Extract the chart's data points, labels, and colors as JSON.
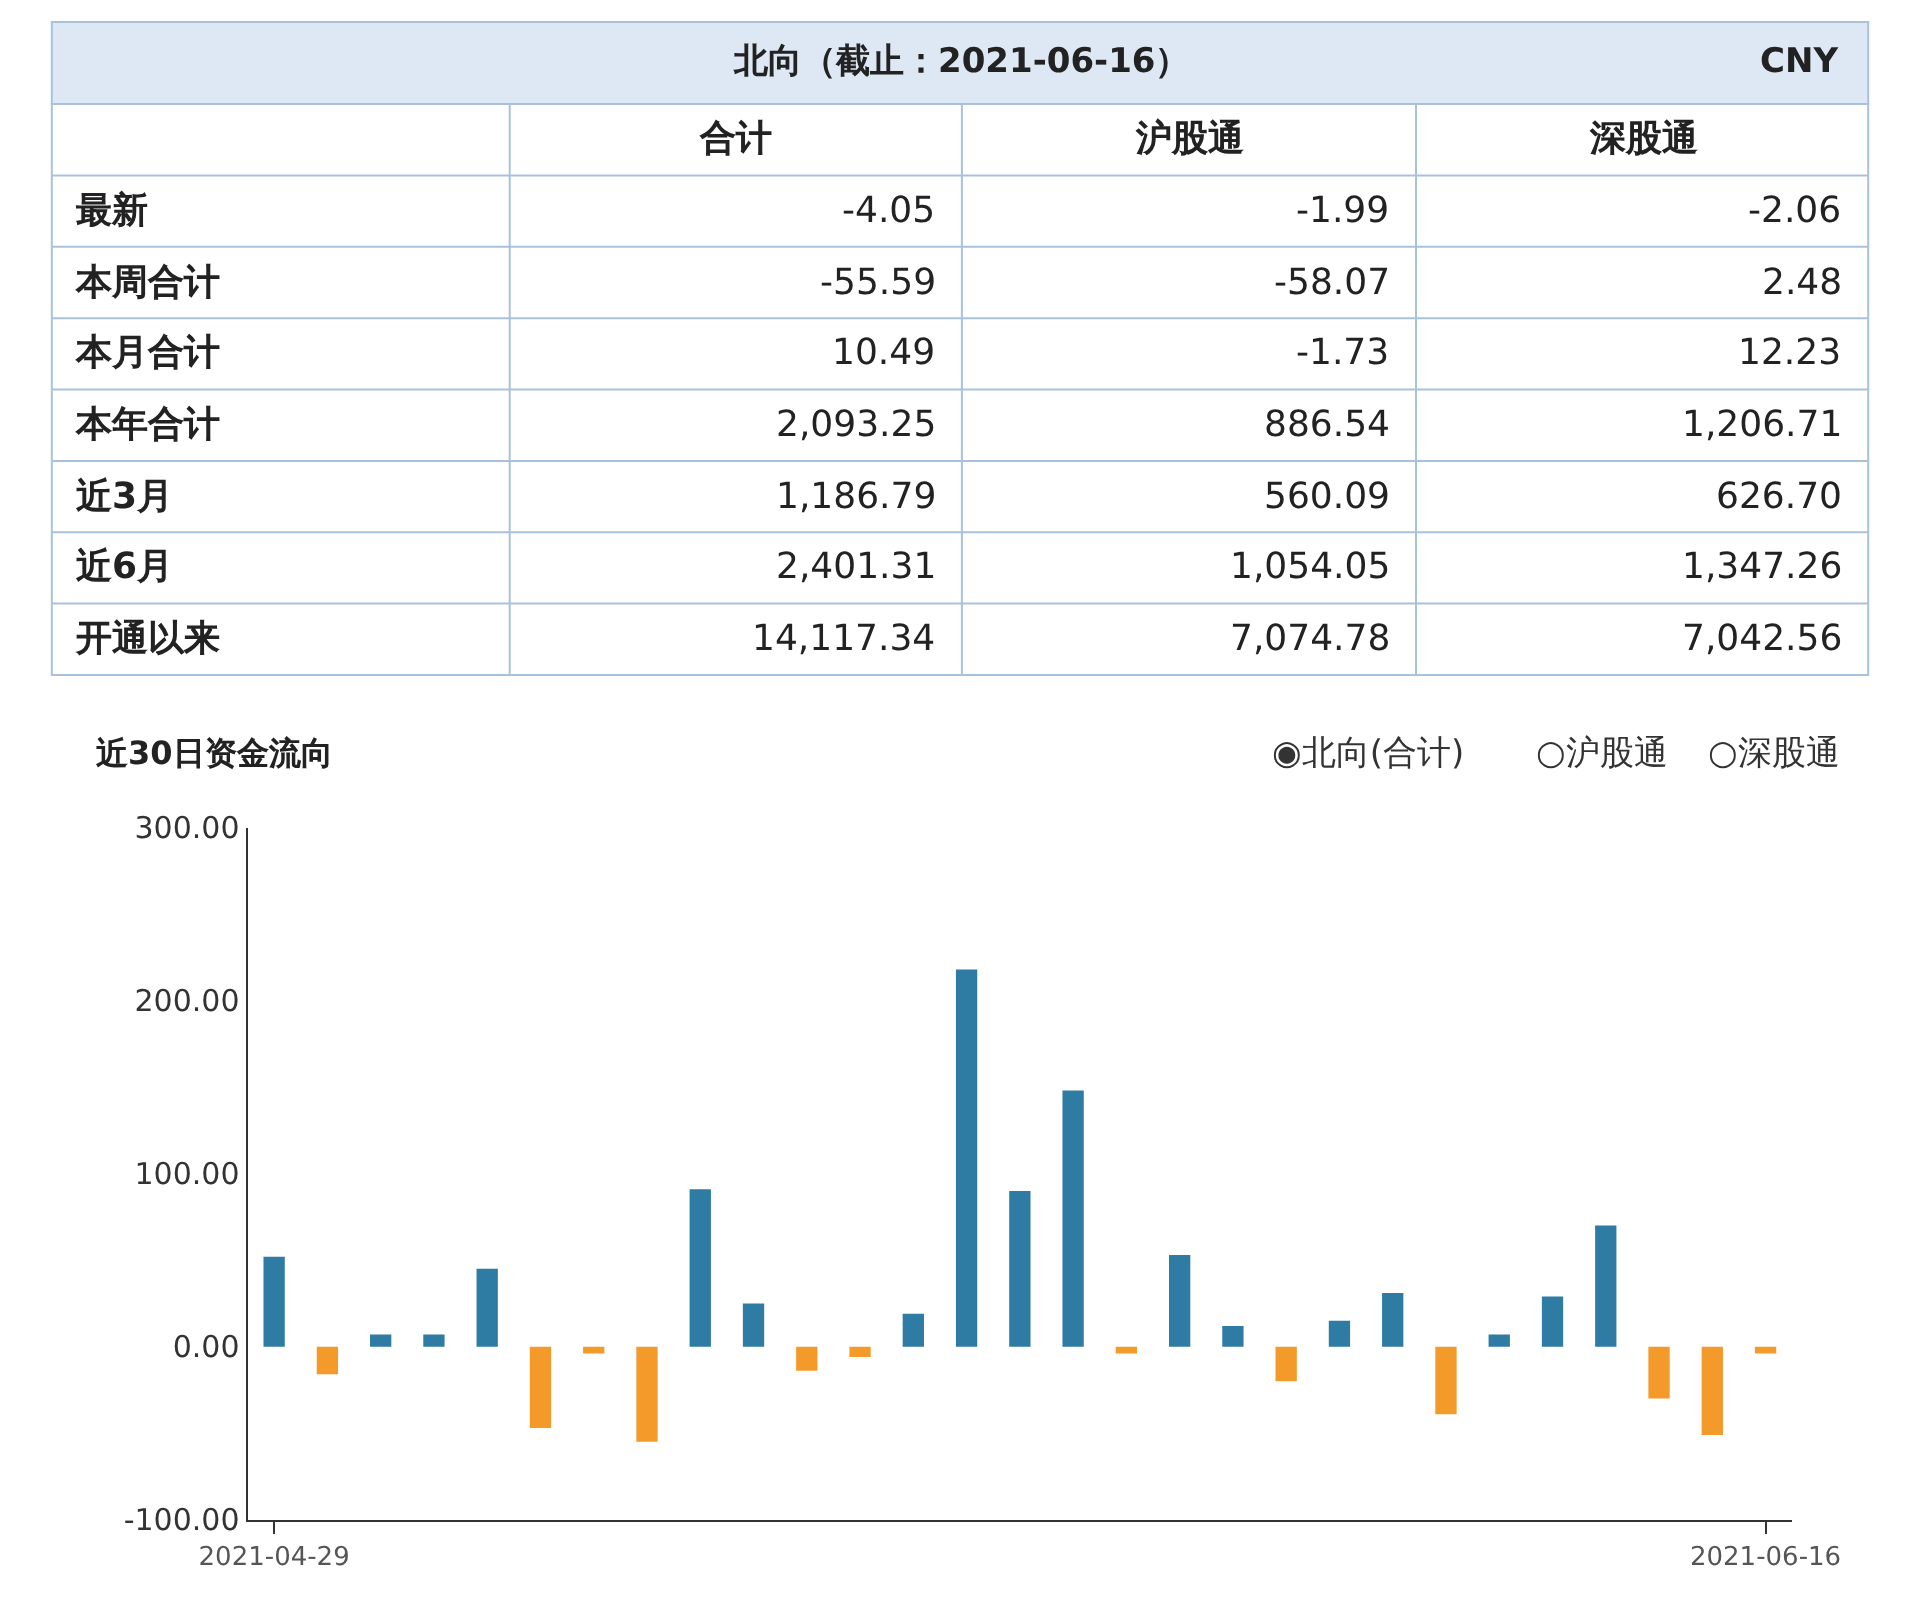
{
  "chart_data": [
    {
      "type": "other",
      "title": "北向（截止：2021-06-16）",
      "annotations": [
        "CNY"
      ],
      "categories": [
        "合计",
        "沪股通",
        "深股通"
      ],
      "y_categories": [
        "最新",
        "本周合计",
        "本月合计",
        "本年合计",
        "近3月",
        "近6月",
        "开通以来"
      ],
      "cell_labels": [
        [
          "-4.05",
          "-1.99",
          "-2.06"
        ],
        [
          "-55.59",
          "-58.07",
          "2.48"
        ],
        [
          "10.49",
          "-1.73",
          "12.23"
        ],
        [
          "2,093.25",
          "886.54",
          "1,206.71"
        ],
        [
          "1,186.79",
          "560.09",
          "626.70"
        ],
        [
          "2,401.31",
          "1,054.05",
          "1,347.26"
        ],
        [
          "14,117.34",
          "7,074.78",
          "7,042.56"
        ]
      ]
    },
    {
      "type": "bar",
      "title": "近30日资金流向",
      "annotations": [
        "◉北向(合计)",
        "○沪股通",
        "○深股通"
      ],
      "categories": [
        "2021-04-29",
        null,
        null,
        null,
        null,
        null,
        null,
        null,
        null,
        null,
        null,
        null,
        null,
        null,
        null,
        null,
        null,
        null,
        null,
        null,
        null,
        null,
        null,
        null,
        null,
        null,
        null,
        null,
        "2021-06-16"
      ],
      "values": [
        52,
        -16,
        7,
        7,
        45,
        -47,
        -4,
        -55,
        91,
        25,
        -14,
        -6,
        19,
        218,
        90,
        148,
        -4,
        53,
        12,
        -20,
        15,
        31,
        -39,
        7,
        29,
        70,
        -30,
        -51,
        -4
      ],
      "colors": [
        "#2e7ba4",
        "#f39a2b",
        "#2e7ba4",
        "#2e7ba4",
        "#2e7ba4",
        "#f39a2b",
        "#f39a2b",
        "#f39a2b",
        "#2e7ba4",
        "#2e7ba4",
        "#f39a2b",
        "#f39a2b",
        "#2e7ba4",
        "#2e7ba4",
        "#2e7ba4",
        "#2e7ba4",
        "#f39a2b",
        "#2e7ba4",
        "#2e7ba4",
        "#f39a2b",
        "#2e7ba4",
        "#2e7ba4",
        "#f39a2b",
        "#2e7ba4",
        "#2e7ba4",
        "#2e7ba4",
        "#f39a2b",
        "#f39a2b",
        "#f39a2b"
      ],
      "ylim": [
        -100,
        300
      ],
      "yticks": [
        {
          "value": -100,
          "label": "-100.00"
        },
        {
          "value": 0,
          "label": "0.00"
        },
        {
          "value": 100,
          "label": "100.00"
        },
        {
          "value": 200,
          "label": "200.00"
        },
        {
          "value": 300,
          "label": "300.00"
        }
      ]
    }
  ]
}
